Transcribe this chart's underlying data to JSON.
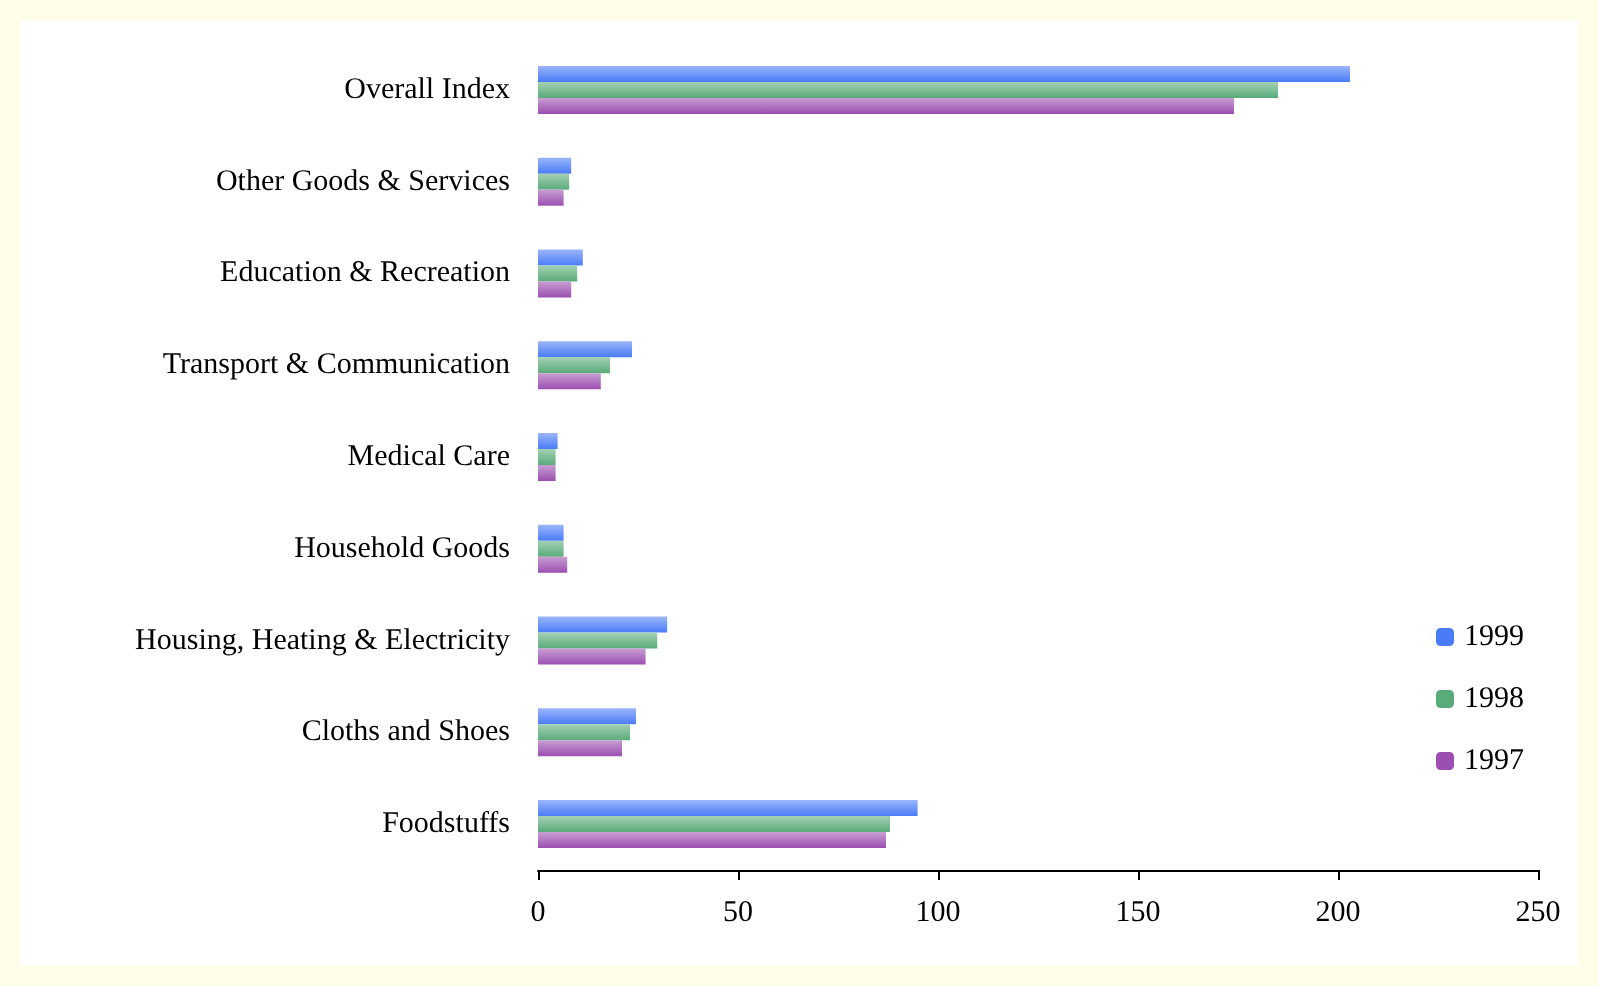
{
  "chart_data": {
    "type": "bar",
    "orientation": "horizontal",
    "categories": [
      "Overall Index",
      "Other Goods & Services",
      "Education & Recreation",
      "Transport & Communication",
      "Medical Care",
      "Household Goods",
      "Housing, Heating & Electricity",
      "Cloths and Shoes",
      "Foodstuffs"
    ],
    "series": [
      {
        "name": "1999",
        "color": "#4a7cf7",
        "values": [
          203,
          8.3,
          11.2,
          23.5,
          4.9,
          6.4,
          32.3,
          24.5,
          94.9
        ]
      },
      {
        "name": "1998",
        "color": "#5aab7a",
        "values": [
          185,
          7.8,
          9.8,
          18,
          4.4,
          6.4,
          29.8,
          23,
          88
        ]
      },
      {
        "name": "1997",
        "color": "#9b4fb0",
        "values": [
          174,
          6.4,
          8.3,
          15.7,
          4.4,
          7.3,
          26.9,
          21,
          87
        ]
      }
    ],
    "xlim": [
      0,
      250
    ],
    "xticks": [
      0,
      50,
      100,
      150,
      200,
      250
    ],
    "grid": false,
    "legend": "bottom right"
  }
}
